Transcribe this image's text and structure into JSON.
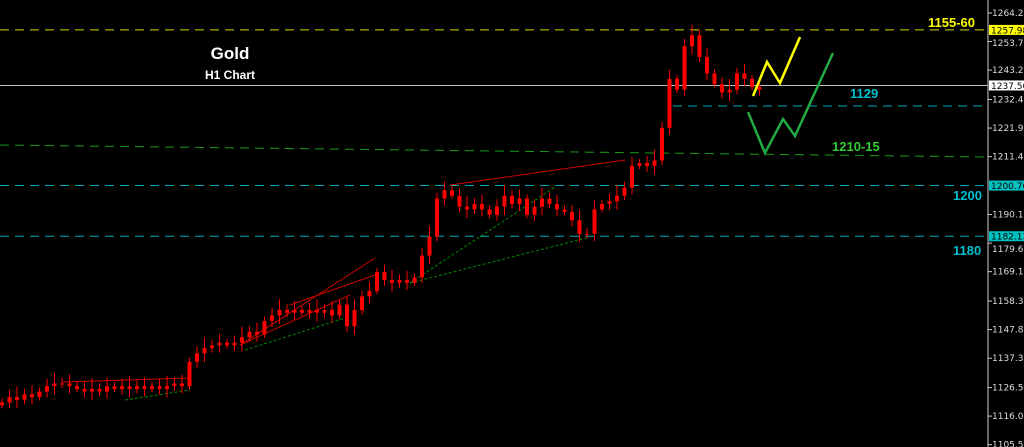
{
  "title": "Gold",
  "subtitle": "H1 Chart",
  "chart_data": {
    "type": "candlestick",
    "instrument": "Gold",
    "timeframe": "H1 Chart",
    "ylim": [
      1105.5,
      1268
    ],
    "y_ticks": [
      "1264.20",
      "1253.70",
      "1243.20",
      "1232.40",
      "1221.90",
      "1211.40",
      "1190.10",
      "1179.60",
      "1169.10",
      "1158.30",
      "1147.80",
      "1137.30",
      "1126.50",
      "1116.00",
      "1105.50"
    ],
    "closes": [
      1121,
      1123,
      1122,
      1124,
      1123,
      1125,
      1127,
      1128,
      1128,
      1127,
      1126,
      1125,
      1126,
      1125,
      1127,
      1126,
      1127,
      1126,
      1127,
      1126,
      1127,
      1126,
      1127,
      1128,
      1127,
      1136,
      1139,
      1141,
      1142,
      1143,
      1142,
      1143,
      1145,
      1147,
      1146,
      1151,
      1153,
      1155,
      1154,
      1155,
      1154,
      1155,
      1154,
      1155,
      1153,
      1157,
      1149,
      1155,
      1160,
      1162,
      1169,
      1166,
      1165,
      1166,
      1165,
      1167,
      1175,
      1182,
      1196,
      1199,
      1197,
      1193,
      1192,
      1194,
      1192,
      1190,
      1193,
      1197,
      1194,
      1196,
      1190,
      1193,
      1196,
      1194,
      1192,
      1191,
      1188,
      1183,
      1183,
      1192,
      1194,
      1195,
      1197,
      1200,
      1208,
      1209,
      1208,
      1210,
      1222,
      1240,
      1236,
      1252,
      1256,
      1248,
      1242,
      1238,
      1235,
      1236,
      1242,
      1240,
      1237,
      1236
    ],
    "price_tags": [
      {
        "value": "1257.98",
        "color": "#ffff00"
      },
      {
        "value": "1237.56",
        "color": "#ffffff"
      },
      {
        "value": "1200.76",
        "color": "#00c0c0"
      },
      {
        "value": "1182.13",
        "color": "#00c0c0"
      }
    ],
    "levels": [
      {
        "label": "1155-60",
        "price": 1257.98,
        "color": "#d4d400",
        "style": "dashed"
      },
      {
        "label": "",
        "price": 1237.56,
        "color": "#c0c0c0",
        "style": "solid"
      },
      {
        "label": "1129",
        "price": 1230,
        "color": "#00a8b8",
        "style": "dashed"
      },
      {
        "label": "1210-15",
        "price": 1213,
        "color": "#1a9a1a",
        "style": "dashed"
      },
      {
        "label": "1200",
        "price": 1200.76,
        "color": "#00a8b8",
        "style": "dashed"
      },
      {
        "label": "1180",
        "price": 1182.13,
        "color": "#00a8b8",
        "style": "dashed"
      }
    ],
    "colors": {
      "candle": "#ff0000",
      "bullish_path": "#ffff00",
      "bearish_path": "#22aa44",
      "resistance_trend": "#cc0000",
      "support_trend": "#008800"
    }
  }
}
